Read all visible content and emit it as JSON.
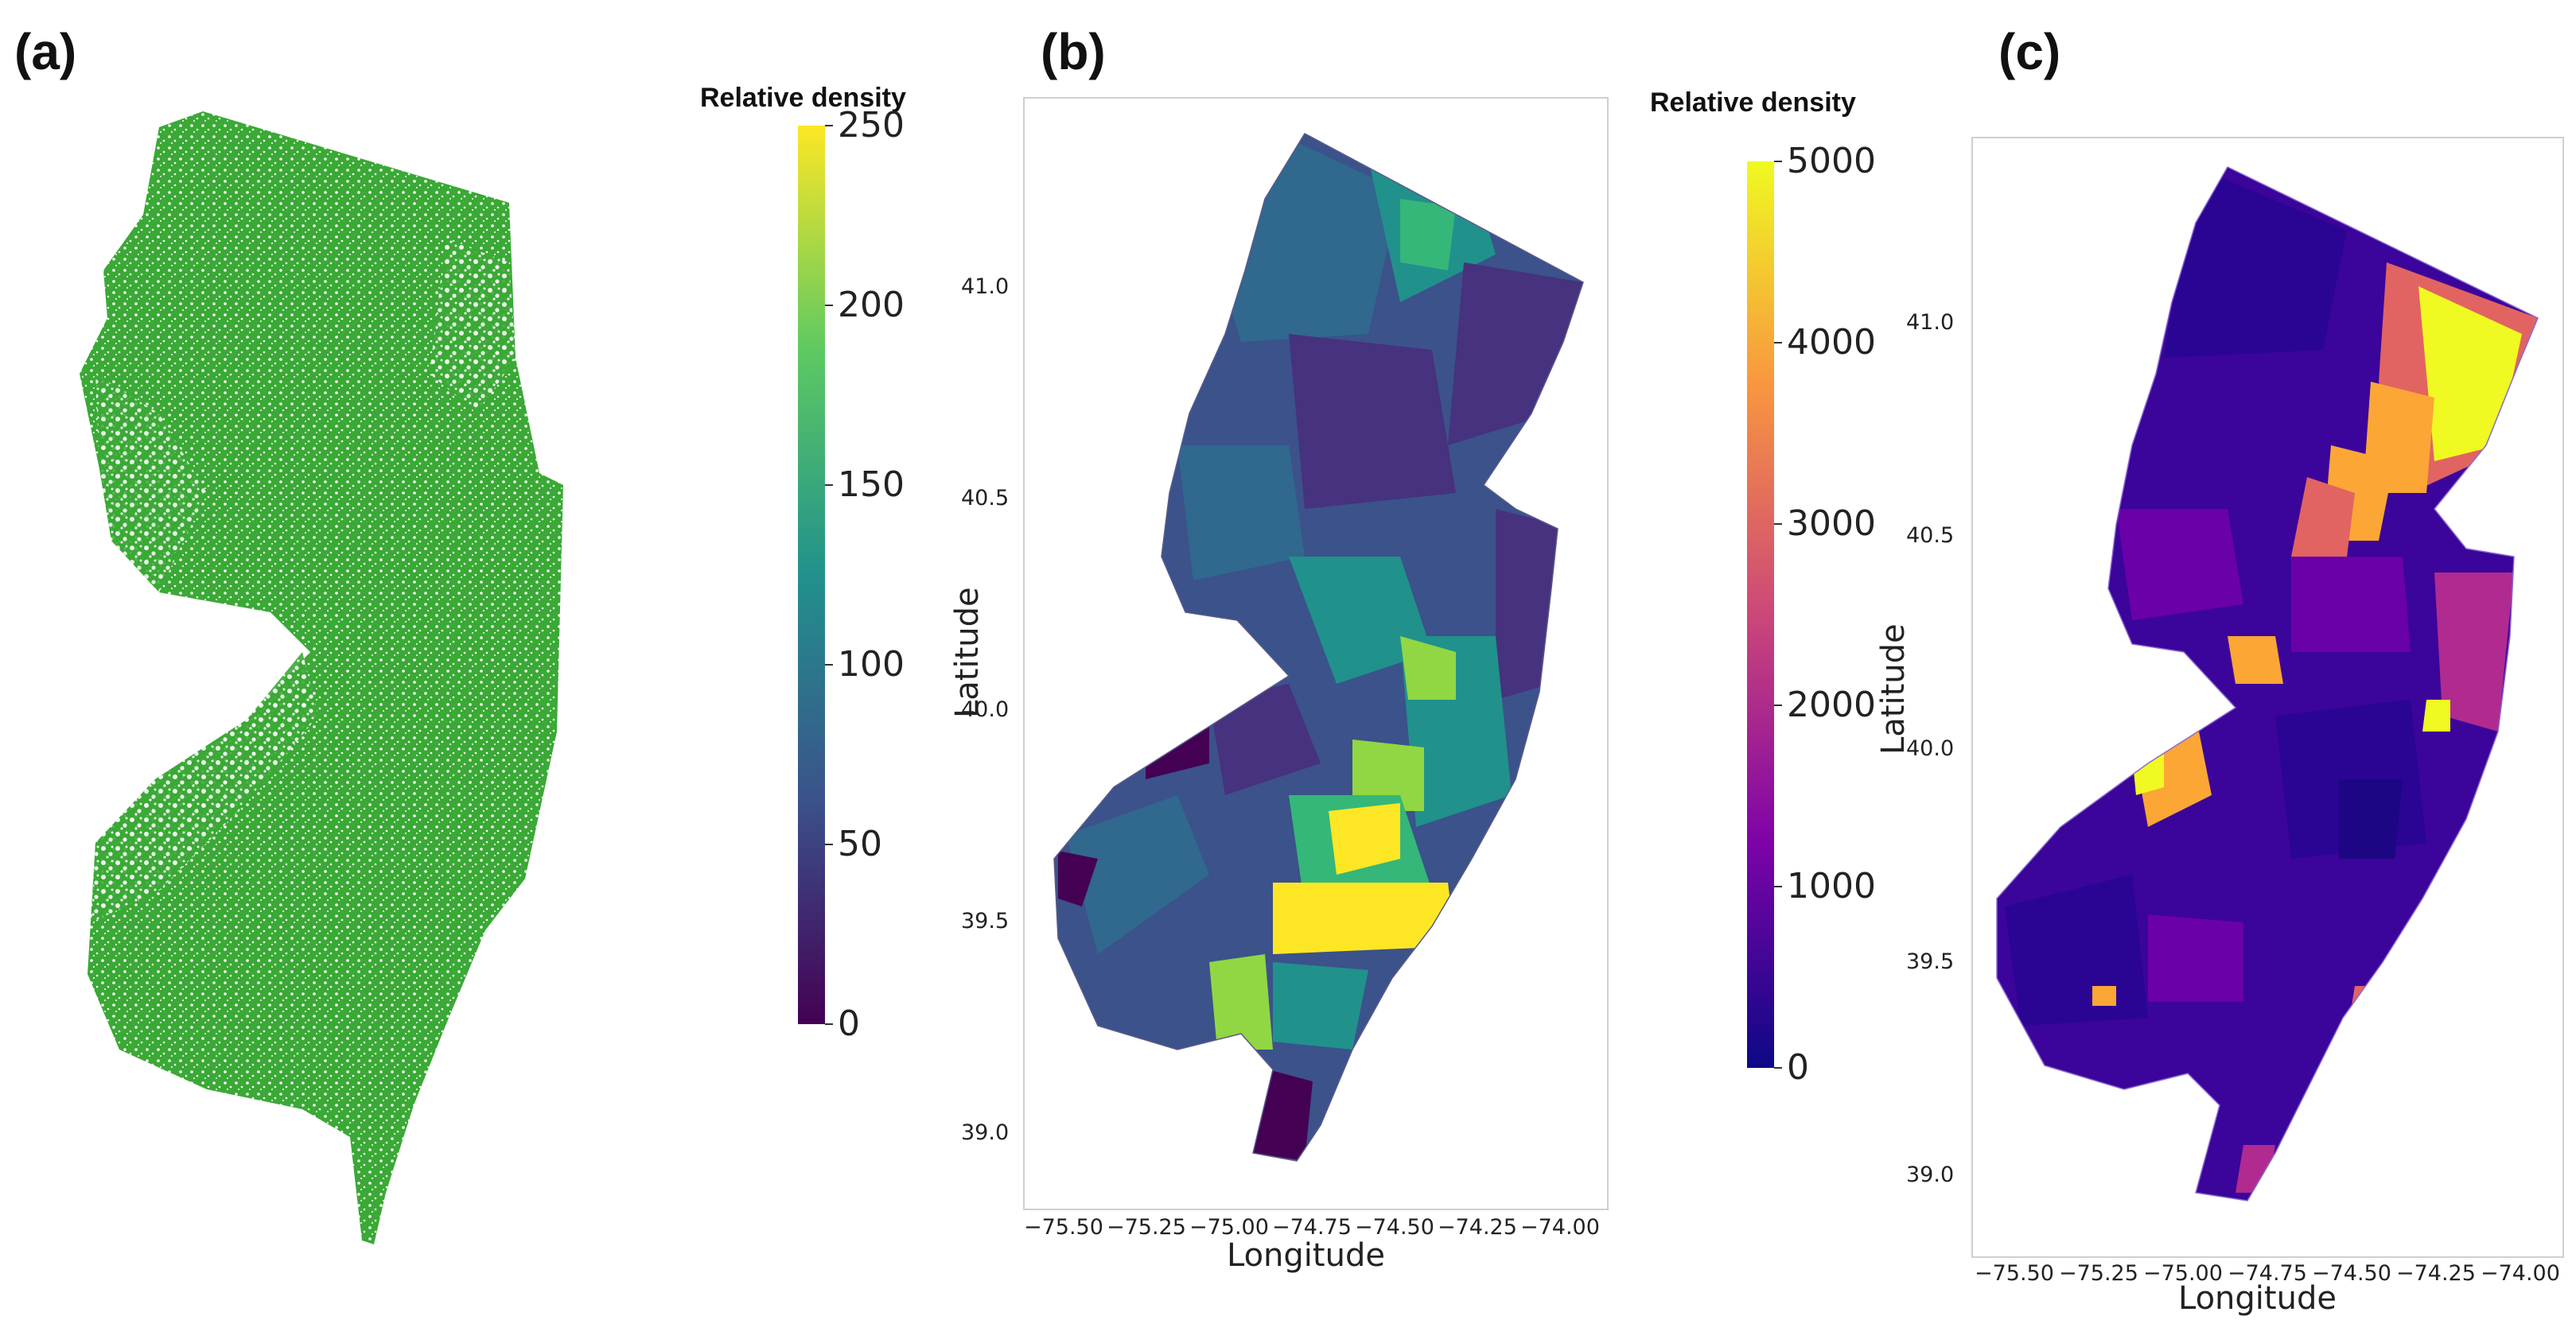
{
  "panels": {
    "a": {
      "label": "(a)",
      "colorbar": {
        "title": "Relative density",
        "ticks": [
          "0",
          "50",
          "100",
          "150",
          "200",
          "250"
        ],
        "colors": [
          "#440154",
          "#3b528b",
          "#21918c",
          "#5ec962",
          "#fde725"
        ]
      },
      "map_color": "#3aa935"
    },
    "b": {
      "label": "(b)",
      "colorbar": {
        "title": "Relative density",
        "ticks": [
          "0",
          "1000",
          "2000",
          "3000",
          "4000",
          "5000"
        ],
        "colors": [
          "#0d0887",
          "#7e03a8",
          "#cc4778",
          "#f89540",
          "#f0f921"
        ]
      },
      "xticks": [
        "−75.50",
        "−75.25",
        "−75.00",
        "−74.75",
        "−74.50",
        "−74.25",
        "−74.00"
      ],
      "yticks": [
        "39.0",
        "39.5",
        "40.0",
        "40.5",
        "41.0"
      ],
      "xlabel": "Longitude",
      "ylabel": "Latitude",
      "region_colors": [
        "#3b528b",
        "#31688e",
        "#21918c",
        "#35b779",
        "#90d743",
        "#fde725",
        "#46327e",
        "#440154"
      ]
    },
    "c": {
      "label": "(c)",
      "xticks": [
        "−75.50",
        "−75.25",
        "−75.00",
        "−74.75",
        "−74.50",
        "−74.25",
        "−74.00"
      ],
      "yticks": [
        "39.0",
        "39.5",
        "40.0",
        "40.5",
        "41.0"
      ],
      "xlabel": "Longitude",
      "ylabel": "Latitude",
      "region_colors": [
        "#2a0593",
        "#3b049a",
        "#6a00a8",
        "#b12a90",
        "#e16462",
        "#fca636",
        "#f0f921",
        "#1c0684"
      ]
    }
  }
}
